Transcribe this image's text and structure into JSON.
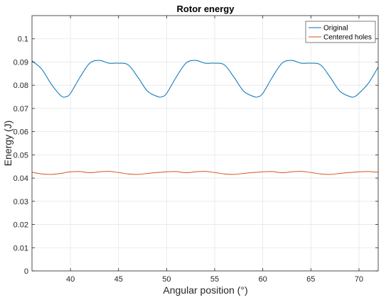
{
  "chart_data": {
    "type": "line",
    "title": "Rotor energy",
    "xlabel": "Angular position (°)",
    "ylabel": "Energy (J)",
    "xlim": [
      36,
      72
    ],
    "ylim": [
      0,
      0.11
    ],
    "xticks": [
      40,
      45,
      50,
      55,
      60,
      65,
      70
    ],
    "yticks": [
      0,
      0.01,
      0.02,
      0.03,
      0.04,
      0.05,
      0.06,
      0.07,
      0.08,
      0.09,
      0.1
    ],
    "grid": true,
    "legend_position": "top-right",
    "colors": {
      "Original": "#0072BD",
      "Centered holes": "#D95319"
    },
    "x": [
      36,
      37,
      38,
      39,
      39.5,
      40,
      41,
      42,
      43,
      44,
      45,
      46,
      47,
      48,
      49,
      49.5,
      50,
      51,
      52,
      53,
      54,
      55,
      56,
      57,
      58,
      59,
      59.5,
      60,
      61,
      62,
      63,
      64,
      65,
      66,
      67,
      68,
      69,
      69.5,
      70,
      71,
      72
    ],
    "series": [
      {
        "name": "Original",
        "values": [
          0.0905,
          0.087,
          0.0805,
          0.0755,
          0.075,
          0.0765,
          0.0835,
          0.0895,
          0.0907,
          0.0895,
          0.0895,
          0.0888,
          0.0835,
          0.0775,
          0.0752,
          0.075,
          0.0765,
          0.0835,
          0.0895,
          0.0907,
          0.0895,
          0.0895,
          0.0888,
          0.0835,
          0.0775,
          0.0752,
          0.075,
          0.0765,
          0.0835,
          0.0895,
          0.0907,
          0.0895,
          0.0895,
          0.0888,
          0.0835,
          0.0775,
          0.0752,
          0.075,
          0.0765,
          0.081,
          0.0878
        ]
      },
      {
        "name": "Centered holes",
        "values": [
          0.0425,
          0.0418,
          0.0416,
          0.042,
          0.0424,
          0.0427,
          0.0428,
          0.0423,
          0.0427,
          0.0429,
          0.0424,
          0.0418,
          0.0416,
          0.042,
          0.0424,
          0.0425,
          0.0427,
          0.0428,
          0.0423,
          0.0427,
          0.0429,
          0.0424,
          0.0418,
          0.0416,
          0.042,
          0.0424,
          0.0425,
          0.0427,
          0.0428,
          0.0423,
          0.0427,
          0.0429,
          0.0424,
          0.0418,
          0.0416,
          0.042,
          0.0424,
          0.0425,
          0.0427,
          0.0428,
          0.0425
        ]
      }
    ]
  }
}
